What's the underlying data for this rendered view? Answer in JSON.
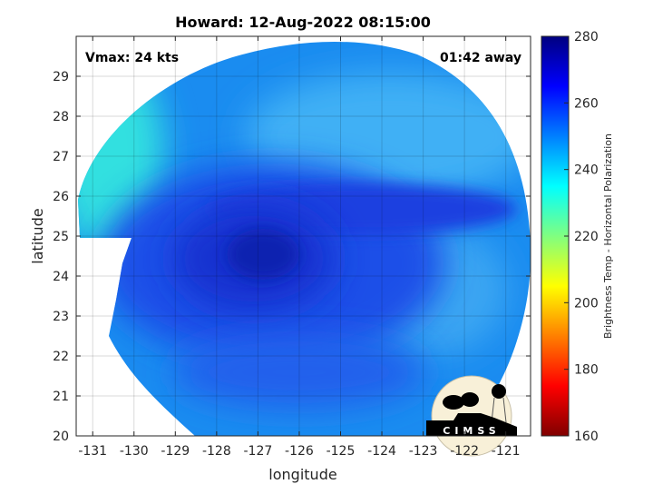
{
  "chart_data": {
    "type": "heatmap",
    "title": "Howard: 12-Aug-2022 08:15:00",
    "xlabel": "longitude",
    "ylabel": "latitude",
    "xlim": [
      -131.4,
      -120.4
    ],
    "ylim": [
      20,
      30
    ],
    "xticks": [
      -131,
      -130,
      -129,
      -128,
      -127,
      -126,
      -125,
      -124,
      -123,
      -122,
      -121
    ],
    "xtick_labels": [
      "-131",
      "-130",
      "-129",
      "-128",
      "-127",
      "-126",
      "-125",
      "-124",
      "-123",
      "-122",
      "-121"
    ],
    "yticks": [
      20,
      21,
      22,
      23,
      24,
      25,
      26,
      27,
      28,
      29
    ],
    "ytick_labels": [
      "20",
      "21",
      "22",
      "23",
      "24",
      "25",
      "26",
      "27",
      "28",
      "29"
    ],
    "grid": true,
    "annotations": {
      "top_left": "Vmax: 24 kts",
      "top_right": "01:42 away"
    },
    "colormap": "jet",
    "colorbar": {
      "label": "Brightness Temp - Horizontal Polarization",
      "range": [
        160,
        280
      ],
      "ticks": [
        160,
        180,
        200,
        220,
        240,
        260,
        280
      ],
      "tick_labels": [
        "160",
        "180",
        "200",
        "220",
        "240",
        "260",
        "280"
      ]
    },
    "storm_center": {
      "lon": -127,
      "lat": 24.5
    },
    "logo": "CIMSS"
  }
}
